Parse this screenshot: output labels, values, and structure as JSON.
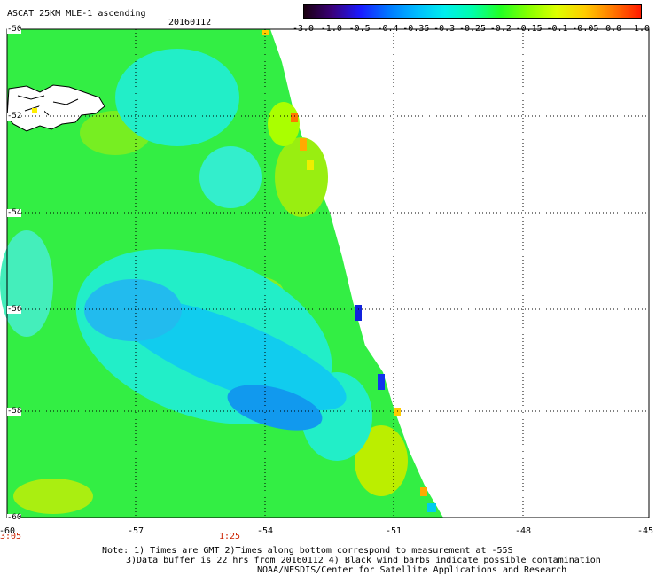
{
  "header": {
    "title": "ASCAT 25KM MLE-1 ascending",
    "date": "20160112"
  },
  "colorbar": {
    "labels": [
      "-3.0",
      "-1.0",
      "-0.5",
      "-0.4",
      "-0.35",
      "-0.3",
      "-0.25",
      "-0.2",
      "-0.15",
      "-0.1",
      "-0.05",
      "0.0",
      "1.0"
    ],
    "colors": [
      "#1a0010",
      "#3a007a",
      "#1a1aff",
      "#0077ff",
      "#00bbff",
      "#00eeee",
      "#00ffaa",
      "#22ff22",
      "#88ff00",
      "#ddff00",
      "#ffcc00",
      "#ff7700",
      "#ff1a00"
    ]
  },
  "map": {
    "lat_labels": [
      "-50",
      "-52",
      "-54",
      "-56",
      "-58",
      "-60"
    ],
    "lon_labels": [
      "-60",
      "-57",
      "-54",
      "-51",
      "-48",
      "-45"
    ],
    "time_labels": [
      "3:05",
      "1:25"
    ]
  },
  "notes": {
    "line1": "Note: 1) Times are GMT 2)Times along bottom correspond to measurement at -55S",
    "line2": "3)Data buffer is 22 hrs from 20160112 4) Black wind barbs indicate possible contamination",
    "line3": "NOAA/NESDIS/Center for Satellite Applications and Research"
  }
}
